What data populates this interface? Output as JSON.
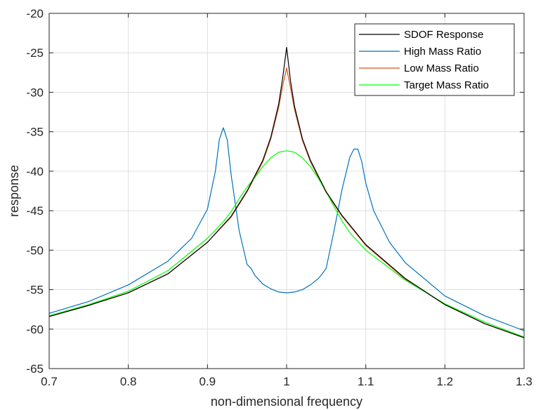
{
  "chart_data": {
    "type": "line",
    "title": "",
    "xlabel": "non-dimensional frequency",
    "ylabel": "response",
    "xlim": [
      0.7,
      1.3
    ],
    "ylim": [
      -65,
      -20
    ],
    "xticks": [
      0.7,
      0.8,
      0.9,
      1.0,
      1.1,
      1.2,
      1.3
    ],
    "xtick_labels": [
      "0.7",
      "0.8",
      "0.9",
      "1",
      "1.1",
      "1.2",
      "1.3"
    ],
    "yticks": [
      -65,
      -60,
      -55,
      -50,
      -45,
      -40,
      -35,
      -30,
      -25,
      -20
    ],
    "ytick_labels": [
      "-65",
      "-60",
      "-55",
      "-50",
      "-45",
      "-40",
      "-35",
      "-30",
      "-25",
      "-20"
    ],
    "grid": true,
    "legend": "top-right",
    "series": [
      {
        "name": "SDOF Response",
        "color": "#000000",
        "x": [
          0.7,
          0.75,
          0.8,
          0.85,
          0.9,
          0.93,
          0.95,
          0.97,
          0.98,
          0.99,
          0.995,
          1.0,
          1.005,
          1.01,
          1.02,
          1.03,
          1.05,
          1.07,
          1.1,
          1.15,
          1.2,
          1.25,
          1.3
        ],
        "y": [
          -58.4,
          -57.0,
          -55.4,
          -53.0,
          -49.0,
          -45.7,
          -42.5,
          -38.6,
          -35.7,
          -31.5,
          -28.2,
          -24.3,
          -28.6,
          -31.8,
          -35.9,
          -38.6,
          -42.6,
          -45.6,
          -49.3,
          -53.6,
          -56.9,
          -59.3,
          -61.1
        ]
      },
      {
        "name": "High Mass Ratio",
        "color": "#0072BD",
        "x": [
          0.7,
          0.75,
          0.8,
          0.85,
          0.88,
          0.9,
          0.91,
          0.915,
          0.92,
          0.925,
          0.93,
          0.94,
          0.95,
          0.955,
          0.96,
          0.97,
          0.98,
          0.99,
          1.0,
          1.01,
          1.02,
          1.03,
          1.04,
          1.045,
          1.05,
          1.06,
          1.07,
          1.08,
          1.085,
          1.09,
          1.095,
          1.1,
          1.11,
          1.13,
          1.15,
          1.2,
          1.25,
          1.3
        ],
        "y": [
          -58.0,
          -56.5,
          -54.4,
          -51.4,
          -48.5,
          -44.8,
          -40.0,
          -36.0,
          -34.5,
          -36.0,
          -40.5,
          -47.5,
          -51.8,
          -52.3,
          -53.2,
          -54.3,
          -54.9,
          -55.3,
          -55.4,
          -55.3,
          -55.0,
          -54.4,
          -53.6,
          -53.0,
          -52.3,
          -47.5,
          -42.3,
          -38.2,
          -37.2,
          -37.2,
          -38.8,
          -41.5,
          -45.0,
          -49.0,
          -51.6,
          -55.8,
          -58.3,
          -60.2
        ]
      },
      {
        "name": "Low Mass Ratio",
        "color": "#D95319",
        "x": [
          0.7,
          0.75,
          0.8,
          0.85,
          0.9,
          0.93,
          0.95,
          0.97,
          0.98,
          0.99,
          0.995,
          1.0,
          1.005,
          1.01,
          1.02,
          1.03,
          1.05,
          1.07,
          1.1,
          1.15,
          1.2,
          1.25,
          1.3
        ],
        "y": [
          -58.4,
          -57.0,
          -55.4,
          -53.0,
          -49.0,
          -45.8,
          -42.6,
          -38.8,
          -35.9,
          -31.9,
          -29.2,
          -26.9,
          -29.5,
          -32.2,
          -36.1,
          -38.8,
          -42.7,
          -45.7,
          -49.4,
          -53.7,
          -56.9,
          -59.3,
          -61.1
        ]
      },
      {
        "name": "Target Mass Ratio",
        "color": "#00FF00",
        "x": [
          0.7,
          0.75,
          0.8,
          0.85,
          0.9,
          0.92,
          0.93,
          0.94,
          0.95,
          0.96,
          0.97,
          0.98,
          0.99,
          1.0,
          1.01,
          1.02,
          1.03,
          1.04,
          1.05,
          1.06,
          1.07,
          1.08,
          1.1,
          1.15,
          1.2,
          1.25,
          1.3
        ],
        "y": [
          -58.3,
          -56.9,
          -55.2,
          -52.6,
          -48.5,
          -46.4,
          -45.1,
          -43.5,
          -42.0,
          -40.8,
          -39.4,
          -38.3,
          -37.6,
          -37.4,
          -37.6,
          -38.3,
          -39.4,
          -40.9,
          -42.6,
          -44.5,
          -46.3,
          -47.8,
          -50.0,
          -53.8,
          -56.8,
          -59.1,
          -61.0
        ]
      }
    ]
  }
}
